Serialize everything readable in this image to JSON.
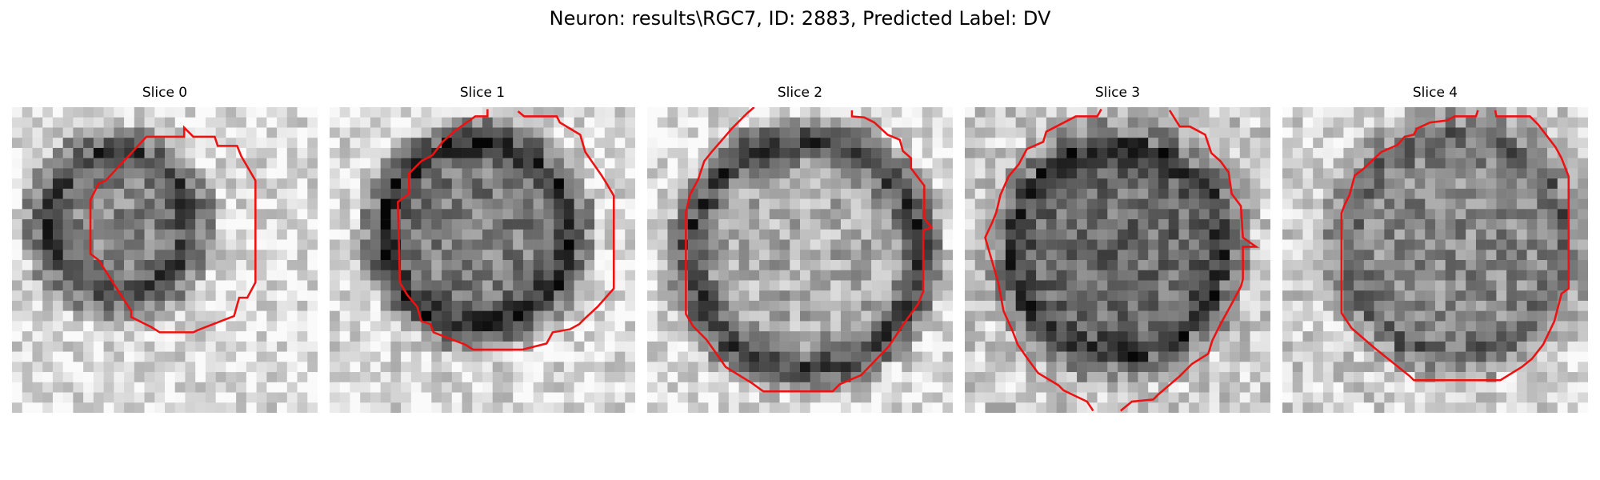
{
  "title": "Neuron: results\\RGC7, ID: 2883, Predicted Label: DV",
  "panels": [
    {
      "title": "Slice 0"
    },
    {
      "title": "Slice 1"
    },
    {
      "title": "Slice 2"
    },
    {
      "title": "Slice 3"
    },
    {
      "title": "Slice 4"
    }
  ],
  "colors": {
    "contour": "#ee1111",
    "background": "#ffffff"
  }
}
